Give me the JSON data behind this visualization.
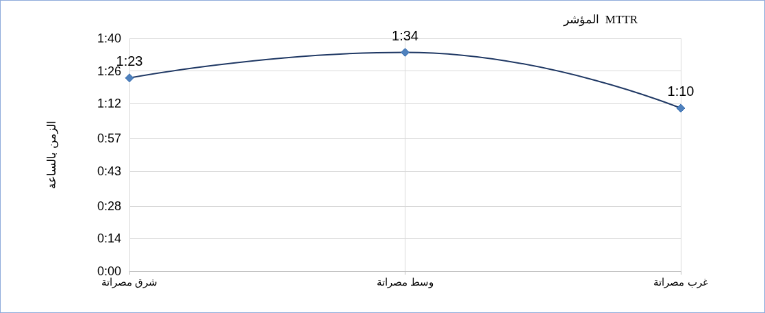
{
  "chart_data": {
    "type": "line",
    "title": "المؤشر  MTTR",
    "ylabel": "الزمن بالساعة",
    "categories": [
      "شرق مصراتة",
      "وسط مصراتة",
      "غرب مصراتة"
    ],
    "series": [
      {
        "color": "#1f3864",
        "values": [
          1.3833,
          1.5667,
          1.1667
        ],
        "value_labels": [
          "1:23",
          "1:34",
          "1:10"
        ]
      }
    ],
    "ylim": [
      0,
      1.6667
    ],
    "yticks": [
      {
        "value": 0,
        "label": "0:00"
      },
      {
        "value": 0.2333,
        "label": "0:14"
      },
      {
        "value": 0.4667,
        "label": "0:28"
      },
      {
        "value": 0.7167,
        "label": "0:43"
      },
      {
        "value": 0.95,
        "label": "0:57"
      },
      {
        "value": 1.2,
        "label": "1:12"
      },
      {
        "value": 1.4333,
        "label": "1:26"
      },
      {
        "value": 1.6667,
        "label": "1:40"
      }
    ],
    "grid": true,
    "marker": "diamond",
    "line_style": "solid"
  }
}
